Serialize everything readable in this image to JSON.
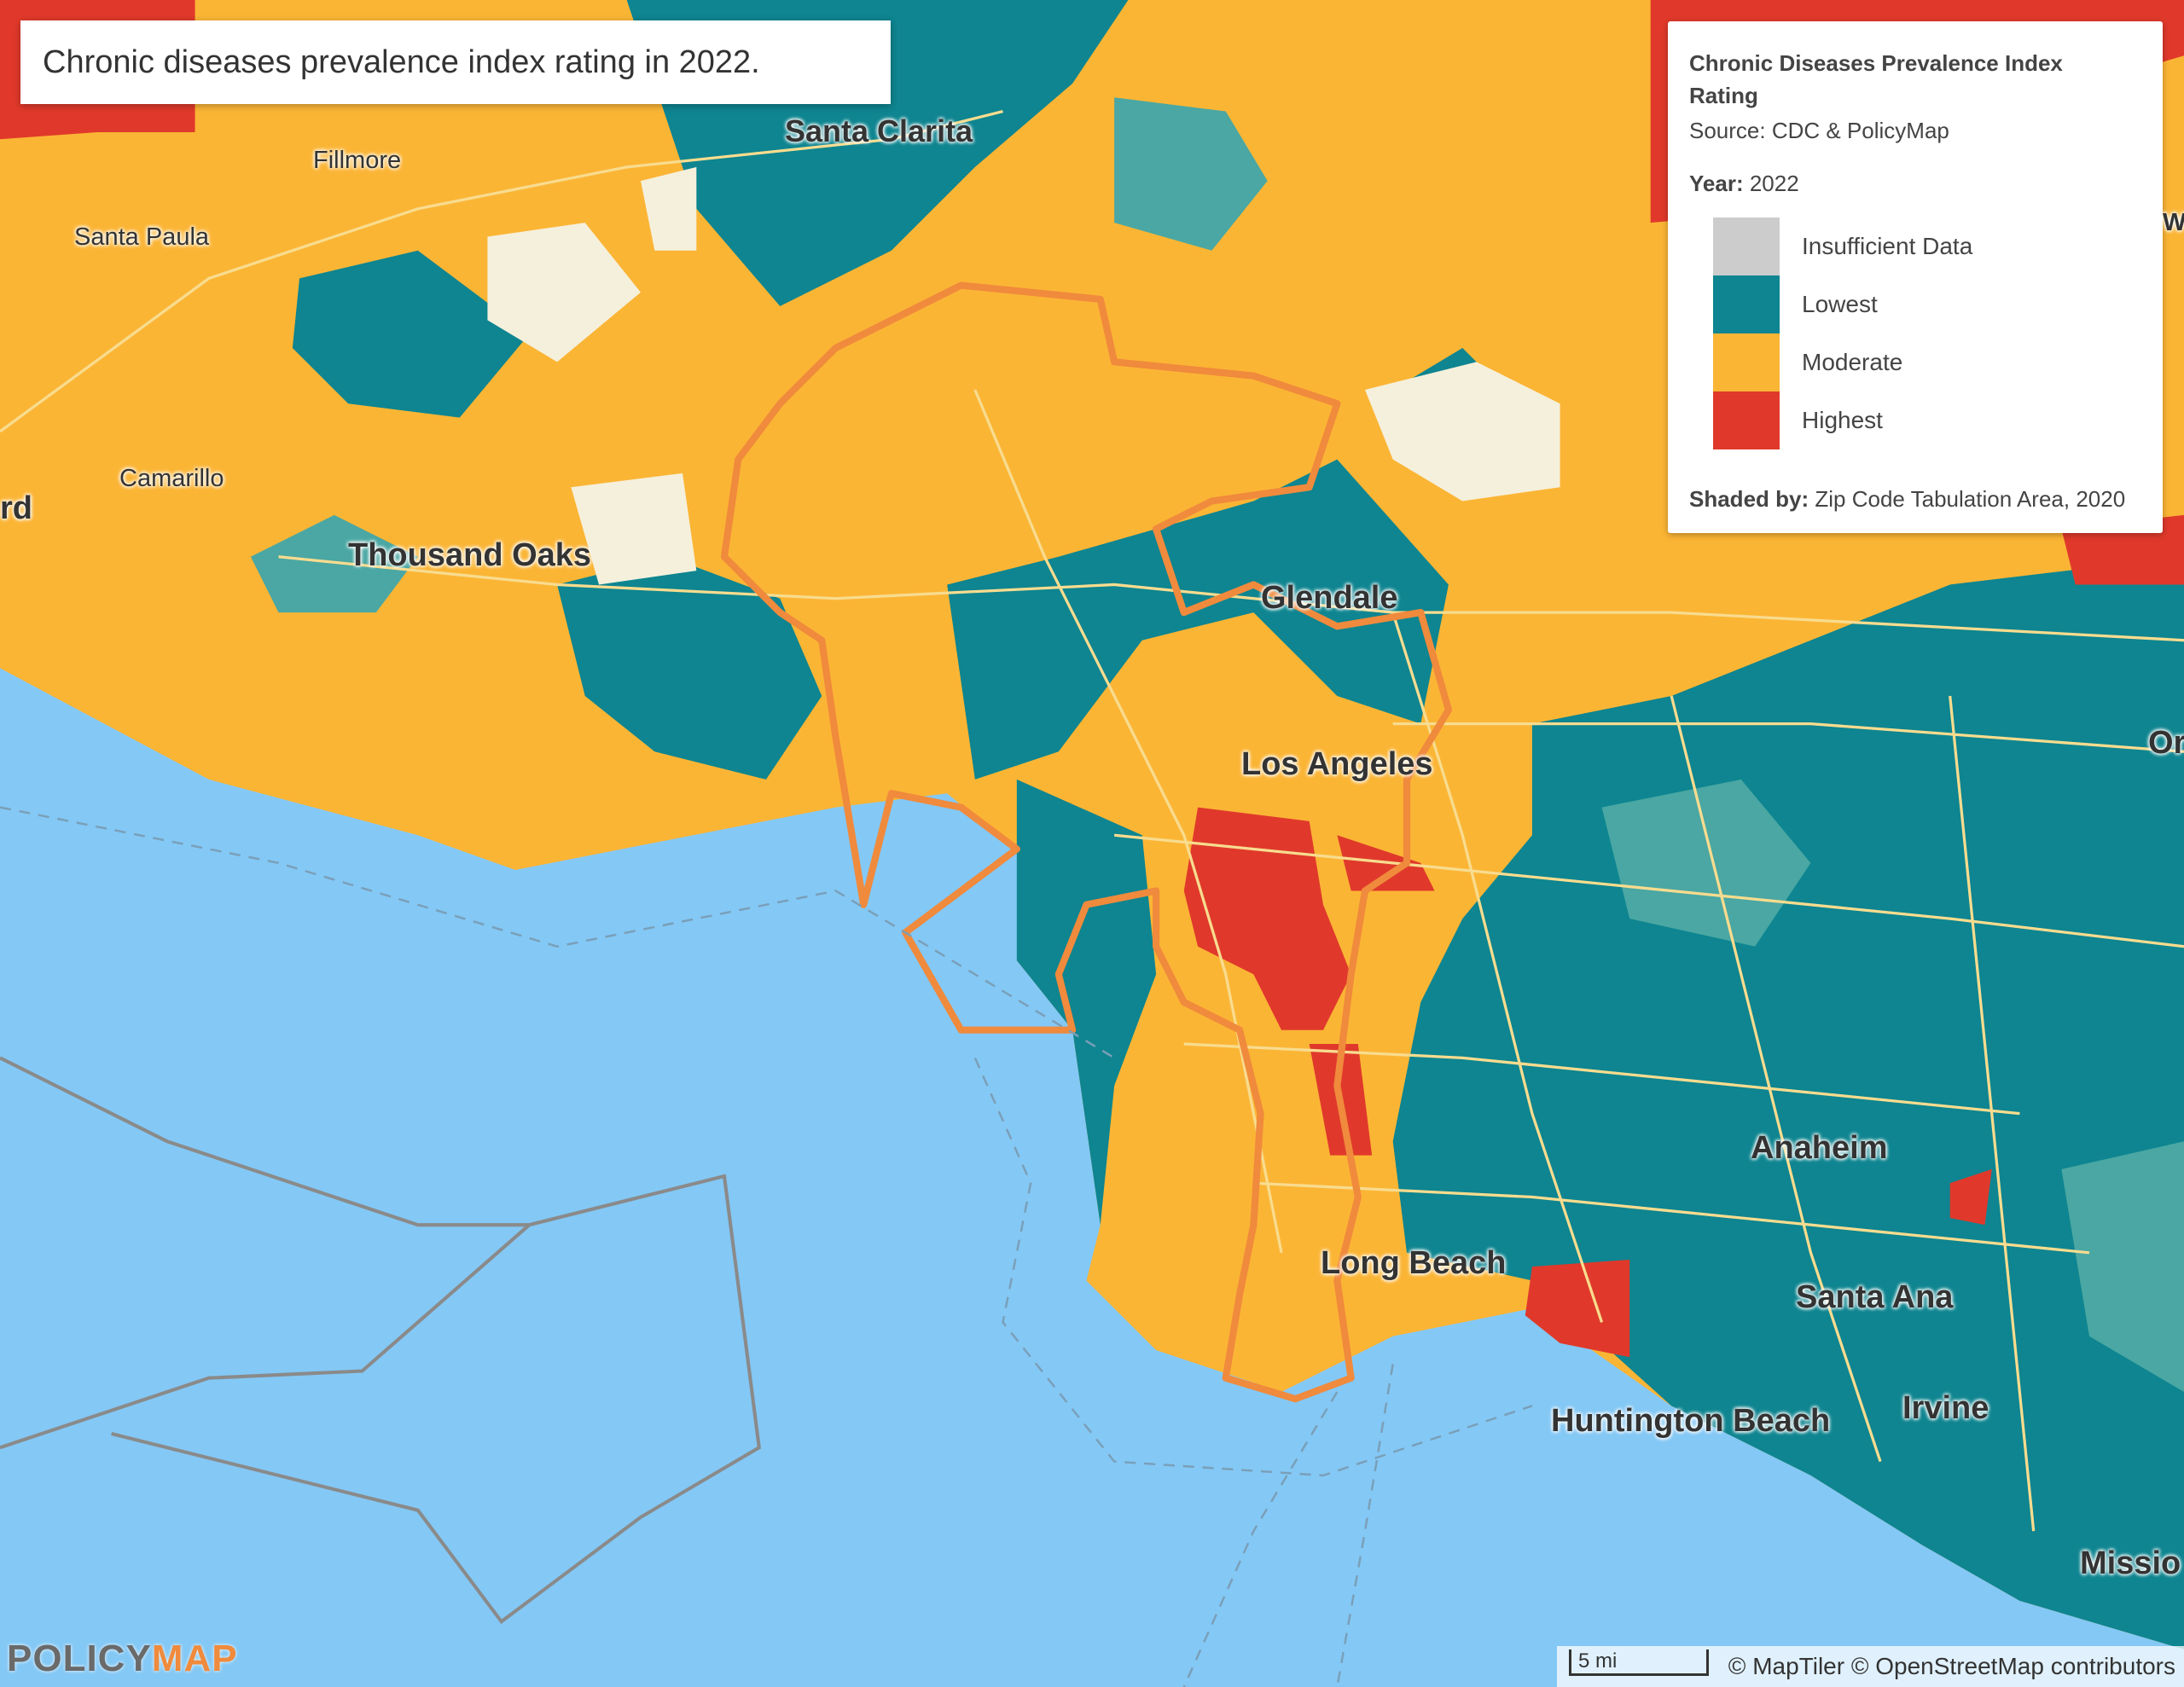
{
  "header": {
    "title": "Chronic diseases prevalence index rating in 2022."
  },
  "legend": {
    "title": "Chronic Diseases Prevalence Index Rating",
    "source": "Source: CDC & PolicyMap",
    "year_label": "Year:",
    "year": "2022",
    "items": [
      {
        "label": "Insufficient Data",
        "color": "#cccccc"
      },
      {
        "label": "Lowest",
        "color": "#0e8590"
      },
      {
        "label": "Moderate",
        "color": "#fbb535"
      },
      {
        "label": "Highest",
        "color": "#e0392b"
      }
    ],
    "shaded_by_label": "Shaded by:",
    "shaded_by": "Zip Code Tabulation Area, 2020"
  },
  "map": {
    "places": [
      "Santa Clarita",
      "Fillmore",
      "Santa Paula",
      "Camarillo",
      "Thousand Oaks",
      "Glendale",
      "Los Angeles",
      "Anaheim",
      "Long Beach",
      "Santa Ana",
      "Irvine",
      "Huntington Beach",
      "rd",
      "Missio",
      "Or",
      "Wi"
    ]
  },
  "footer": {
    "logo_a": "POLICY",
    "logo_b": "MAP",
    "scale": "5 mi",
    "attribution": "© MapTiler © OpenStreetMap contributors"
  }
}
